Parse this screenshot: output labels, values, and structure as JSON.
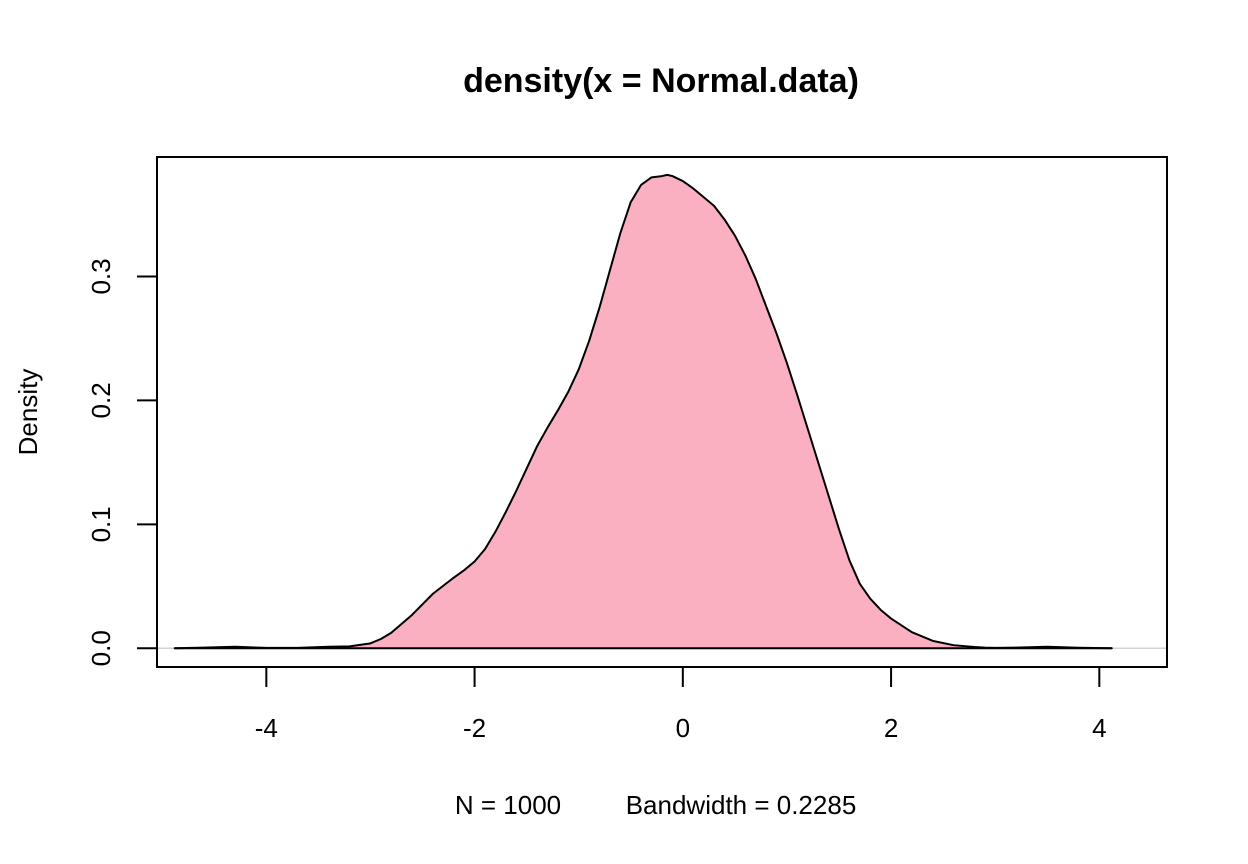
{
  "chart_data": {
    "type": "area",
    "title": "density(x = Normal.data)",
    "xlabel": "N = 1000   Bandwidth = 0.2285",
    "ylabel": "Density",
    "xlim": [
      -5.05,
      4.65
    ],
    "ylim": [
      -0.0151,
      0.3964
    ],
    "grid": false,
    "legend": "none",
    "fill_color": "#FBB0C2",
    "line_color": "#000000",
    "baseline_color": "#D3D3D3",
    "x_ticks": [
      {
        "value": -4,
        "label": "-4"
      },
      {
        "value": -2,
        "label": "-2"
      },
      {
        "value": 0,
        "label": "0"
      },
      {
        "value": 2,
        "label": "2"
      },
      {
        "value": 4,
        "label": "4"
      }
    ],
    "y_ticks": [
      {
        "value": 0.0,
        "label": "0.0"
      },
      {
        "value": 0.1,
        "label": "0.1"
      },
      {
        "value": 0.2,
        "label": "0.2"
      },
      {
        "value": 0.3,
        "label": "0.3"
      }
    ],
    "series": [
      {
        "x": [
          -4.88,
          -4.6,
          -4.3,
          -4.0,
          -3.7,
          -3.4,
          -3.2,
          -3.0,
          -2.9,
          -2.8,
          -2.6,
          -2.4,
          -2.2,
          -2.1,
          -2.0,
          -1.9,
          -1.8,
          -1.7,
          -1.6,
          -1.5,
          -1.4,
          -1.3,
          -1.2,
          -1.1,
          -1.0,
          -0.9,
          -0.8,
          -0.7,
          -0.6,
          -0.5,
          -0.4,
          -0.3,
          -0.2,
          -0.15,
          -0.1,
          0.0,
          0.1,
          0.2,
          0.3,
          0.4,
          0.5,
          0.6,
          0.7,
          0.8,
          0.9,
          1.0,
          1.1,
          1.2,
          1.3,
          1.4,
          1.5,
          1.6,
          1.7,
          1.8,
          1.9,
          2.0,
          2.2,
          2.4,
          2.6,
          2.8,
          2.9,
          3.0,
          3.2,
          3.5,
          3.8,
          4.12
        ],
        "y": [
          0.0,
          0.0005,
          0.0012,
          0.0003,
          0.0003,
          0.0012,
          0.0015,
          0.004,
          0.0075,
          0.0125,
          0.027,
          0.044,
          0.057,
          0.063,
          0.07,
          0.08,
          0.094,
          0.11,
          0.127,
          0.145,
          0.163,
          0.178,
          0.192,
          0.207,
          0.225,
          0.248,
          0.275,
          0.305,
          0.335,
          0.36,
          0.374,
          0.38,
          0.381,
          0.382,
          0.381,
          0.377,
          0.371,
          0.364,
          0.357,
          0.346,
          0.333,
          0.317,
          0.298,
          0.276,
          0.254,
          0.23,
          0.204,
          0.177,
          0.15,
          0.123,
          0.096,
          0.071,
          0.052,
          0.04,
          0.031,
          0.024,
          0.013,
          0.006,
          0.0025,
          0.001,
          0.0005,
          0.0003,
          0.0005,
          0.0012,
          0.0004,
          0.0
        ]
      }
    ],
    "footer": {
      "n_text": "N = 1000",
      "bandwidth_text": "Bandwidth = 0.2285"
    }
  }
}
